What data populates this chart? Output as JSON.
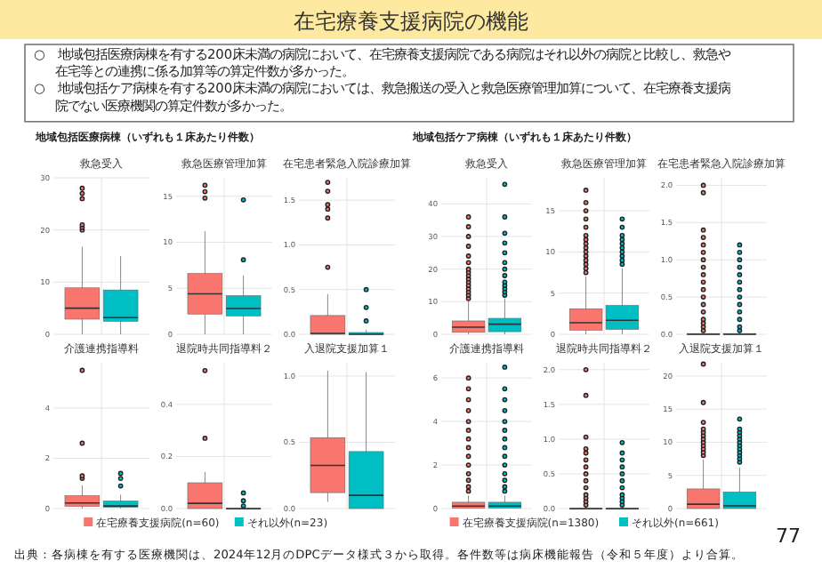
{
  "chart_data": [
    {
      "type": "other",
      "title": "在宅療養支援病院の機能",
      "annotations": [
        "○　地域包括医療病棟を有する200床未満の病院において、在宅療養支援病院である病院はそれ以外の病院と比較し、救急や在宅等との連携に係る加算等の算定件数が多かった。",
        "○　地域包括ケア病棟を有する200床未満の病院においては、救急搬送の受入と救急医療管理加算について、在宅療養支援病院でない医療機関の算定件数が多かった。",
        "地域包括医療病棟（いずれも１床あたり件数）",
        "地域包括ケア病棟（いずれも１床あたり件数）",
        "出典：各病棟を有する医療機関は、2024年12月のDPCデータ様式３から取得。各件数等は病床機能報告（令和５年度）より合算。",
        "77"
      ]
    },
    {
      "type": "box",
      "title": "救急受入",
      "categories": [
        null
      ],
      "ylim": [
        0,
        30
      ],
      "yticks": [
        0,
        10,
        20,
        30
      ],
      "grid": true,
      "series": [
        {
          "color": "#f8766d",
          "boxes": [
            {
              "low": 0,
              "q1": 2.9,
              "median": 5,
              "q3": 8.9,
              "high": 16.8,
              "outliers": [
                20,
                20.5,
                21,
                26,
                27,
                28
              ]
            }
          ]
        },
        {
          "color": "#00bfc4",
          "boxes": [
            {
              "low": 0,
              "q1": 2.5,
              "median": 3.2,
              "q3": 8.5,
              "high": 15
            }
          ]
        }
      ]
    },
    {
      "type": "box",
      "title": "救急医療管理加算",
      "categories": [
        null
      ],
      "ylim": [
        0,
        17
      ],
      "yticks": [
        0,
        5,
        10,
        15
      ],
      "grid": true,
      "series": [
        {
          "color": "#f8766d",
          "boxes": [
            {
              "low": 0,
              "q1": 2.2,
              "median": 4.4,
              "q3": 6.6,
              "high": 11.2,
              "outliers": [
                14.8,
                15.5,
                16.2
              ]
            }
          ]
        },
        {
          "color": "#00bfc4",
          "boxes": [
            {
              "low": 0,
              "q1": 2,
              "median": 2.8,
              "q3": 4.2,
              "high": 6.4,
              "outliers": [
                8.1,
                14.6
              ]
            }
          ]
        }
      ]
    },
    {
      "type": "box",
      "title": "在宅患者緊急入院診療加算",
      "categories": [
        null
      ],
      "ylim": [
        0,
        1.75
      ],
      "yticks": [
        {
          "value": 0,
          "label": "0.0"
        },
        0.5,
        {
          "value": 1,
          "label": "1.0"
        },
        1.5
      ],
      "grid": true,
      "series": [
        {
          "color": "#f8766d",
          "boxes": [
            {
              "low": 0,
              "q1": 0,
              "median": 0.01,
              "q3": 0.21,
              "high": 0.45,
              "outliers": [
                0.75,
                1.3,
                1.4,
                1.45,
                1.6,
                1.7
              ]
            }
          ]
        },
        {
          "color": "#00bfc4",
          "boxes": [
            {
              "low": 0,
              "q1": 0,
              "median": 0,
              "q3": 0.02,
              "high": 0.05,
              "outliers": [
                0.15,
                0.3,
                0.5
              ]
            }
          ]
        }
      ]
    },
    {
      "type": "box",
      "title": "介護連携指導料",
      "categories": [
        null
      ],
      "ylim": [
        0,
        5.8
      ],
      "yticks": [
        0,
        2,
        4
      ],
      "grid": true,
      "series": [
        {
          "color": "#f8766d",
          "boxes": [
            {
              "low": 0,
              "q1": 0.09,
              "median": 0.22,
              "q3": 0.51,
              "high": 0.93,
              "outliers": [
                1.2,
                1.3,
                2.6,
                5.5
              ]
            }
          ]
        },
        {
          "color": "#00bfc4",
          "boxes": [
            {
              "low": 0,
              "q1": 0.05,
              "median": 0.1,
              "q3": 0.3,
              "high": 0.55,
              "outliers": [
                0.9,
                1.2,
                1.4
              ]
            }
          ]
        }
      ]
    },
    {
      "type": "box",
      "title": "退院時共同指導料２",
      "categories": [
        null
      ],
      "ylim": [
        0,
        0.56
      ],
      "yticks": [
        {
          "value": 0,
          "label": "0.0"
        },
        0.2,
        0.4
      ],
      "grid": true,
      "series": [
        {
          "color": "#f8766d",
          "boxes": [
            {
              "low": 0,
              "q1": 0,
              "median": 0.02,
              "q3": 0.099,
              "high": 0.14,
              "outliers": [
                0.27,
                0.53
              ]
            }
          ]
        },
        {
          "color": "#00bfc4",
          "boxes": [
            {
              "low": 0,
              "q1": 0,
              "median": 0,
              "q3": 0,
              "high": 0,
              "outliers": [
                0.01,
                0.03,
                0.06
              ]
            }
          ]
        }
      ]
    },
    {
      "type": "box",
      "title": "入退院支援加算１",
      "categories": [
        null
      ],
      "ylim": [
        0,
        1.1
      ],
      "yticks": [
        {
          "value": 0,
          "label": "0.0"
        },
        0.5,
        {
          "value": 1,
          "label": "1.0"
        }
      ],
      "grid": true,
      "legend": "bottom",
      "series": [
        {
          "name": "在宅療養支援病院(n=60)",
          "color": "#f8766d",
          "boxes": [
            {
              "low": 0.05,
              "q1": 0.12,
              "median": 0.325,
              "q3": 0.535,
              "high": 1.04
            }
          ]
        },
        {
          "name": "それ以外(n=23)",
          "color": "#00bfc4",
          "boxes": [
            {
              "low": 0,
              "q1": 0,
              "median": 0.1,
              "q3": 0.43,
              "high": 1.03
            }
          ]
        }
      ]
    },
    {
      "type": "box",
      "title": "救急受入",
      "categories": [
        null
      ],
      "ylim": [
        0,
        48
      ],
      "yticks": [
        0,
        10,
        20,
        30,
        40
      ],
      "grid": true,
      "series": [
        {
          "color": "#f8766d",
          "boxes": [
            {
              "low": 0,
              "q1": 0.6,
              "median": 2.2,
              "q3": 4.1,
              "high": 10.5,
              "outliers": [
                11,
                12,
                13,
                14,
                15,
                16,
                17,
                18,
                19,
                20,
                22,
                24,
                27,
                30,
                33,
                36
              ]
            }
          ]
        },
        {
          "color": "#00bfc4",
          "boxes": [
            {
              "low": 0,
              "q1": 0.8,
              "median": 3.1,
              "q3": 4.9,
              "high": 11,
              "outliers": [
                12,
                13,
                14,
                15,
                16,
                18,
                20,
                22,
                25,
                28,
                31,
                36,
                46
              ]
            }
          ]
        }
      ]
    },
    {
      "type": "box",
      "title": "救急医療管理加算",
      "categories": [
        null
      ],
      "ylim": [
        0,
        19
      ],
      "yticks": [
        0,
        5,
        10,
        15
      ],
      "grid": true,
      "series": [
        {
          "color": "#f8766d",
          "boxes": [
            {
              "low": 0,
              "q1": 0.5,
              "median": 1.4,
              "q3": 3.1,
              "high": 7,
              "outliers": [
                7.5,
                8,
                8.5,
                9,
                9.5,
                10,
                10.5,
                11,
                11.5,
                12,
                13,
                14,
                15,
                16,
                17.5
              ]
            }
          ]
        },
        {
          "color": "#00bfc4",
          "boxes": [
            {
              "low": 0,
              "q1": 0.6,
              "median": 1.7,
              "q3": 3.5,
              "high": 8,
              "outliers": [
                8.5,
                9,
                9.5,
                10,
                10.5,
                11,
                11.5,
                12,
                13,
                14
              ]
            }
          ]
        }
      ]
    },
    {
      "type": "box",
      "title": "在宅患者緊急入院診療加算",
      "categories": [
        null
      ],
      "ylim": [
        0,
        2.1
      ],
      "yticks": [
        {
          "value": 0,
          "label": "0.0"
        },
        0.5,
        {
          "value": 1,
          "label": "1.0"
        },
        1.5,
        {
          "value": 2,
          "label": "2.0"
        }
      ],
      "grid": true,
      "series": [
        {
          "color": "#f8766d",
          "boxes": [
            {
              "low": 0,
              "q1": 0,
              "median": 0,
              "q3": 0.01,
              "high": 0.02,
              "outliers": [
                0.05,
                0.1,
                0.15,
                0.2,
                0.3,
                0.4,
                0.5,
                0.6,
                0.7,
                0.8,
                0.9,
                1,
                1.1,
                1.2,
                1.3,
                1.4,
                1.9,
                2
              ]
            }
          ]
        },
        {
          "color": "#00bfc4",
          "boxes": [
            {
              "low": 0,
              "q1": 0,
              "median": 0,
              "q3": 0.01,
              "high": 0.02,
              "outliers": [
                0.05,
                0.1,
                0.2,
                0.3,
                0.4,
                0.5,
                0.6,
                0.7,
                0.8,
                0.9,
                1,
                1.1,
                1.2
              ]
            }
          ]
        }
      ]
    },
    {
      "type": "box",
      "title": "介護連携指導料",
      "categories": [
        null
      ],
      "ylim": [
        0,
        6.7
      ],
      "yticks": [
        0,
        2,
        4,
        6
      ],
      "grid": true,
      "series": [
        {
          "color": "#f8766d",
          "boxes": [
            {
              "low": 0,
              "q1": 0.02,
              "median": 0.11,
              "q3": 0.29,
              "high": 0.6,
              "outliers": [
                0.8,
                1,
                1.3,
                1.6,
                2,
                2.4,
                2.8,
                3.2,
                3.6,
                4,
                4.5,
                5,
                5.5,
                6
              ]
            }
          ]
        },
        {
          "color": "#00bfc4",
          "boxes": [
            {
              "low": 0,
              "q1": 0.02,
              "median": 0.11,
              "q3": 0.29,
              "high": 0.6,
              "outliers": [
                0.8,
                1,
                1.3,
                1.6,
                2,
                2.4,
                2.8,
                3.2,
                3.6,
                4,
                4.5,
                5,
                5.5,
                6.5
              ]
            }
          ]
        }
      ]
    },
    {
      "type": "box",
      "title": "退院時共同指導料２",
      "categories": [
        null
      ],
      "ylim": [
        0,
        2.1
      ],
      "yticks": [
        {
          "value": 0,
          "label": "0.0"
        },
        0.5,
        {
          "value": 1,
          "label": "1.0"
        },
        1.5,
        {
          "value": 2,
          "label": "2.0"
        }
      ],
      "grid": true,
      "series": [
        {
          "color": "#f8766d",
          "boxes": [
            {
              "low": 0,
              "q1": 0,
              "median": 0,
              "q3": 0,
              "high": 0.02,
              "outliers": [
                0.05,
                0.1,
                0.15,
                0.2,
                0.3,
                0.4,
                0.5,
                0.6,
                0.7,
                0.8,
                0.86,
                1.03,
                1.63,
                2
              ]
            }
          ]
        },
        {
          "color": "#00bfc4",
          "boxes": [
            {
              "low": 0,
              "q1": 0,
              "median": 0,
              "q3": 0,
              "high": 0.02,
              "outliers": [
                0.05,
                0.1,
                0.15,
                0.2,
                0.3,
                0.4,
                0.5,
                0.6,
                0.7,
                0.8,
                0.95
              ]
            }
          ]
        }
      ]
    },
    {
      "type": "box",
      "title": "入退院支援加算１",
      "categories": [
        null
      ],
      "ylim": [
        0,
        22
      ],
      "yticks": [
        0,
        5,
        10,
        15,
        20
      ],
      "grid": true,
      "legend": "bottom",
      "series": [
        {
          "name": "在宅療養支援病院(n=1380)",
          "color": "#f8766d",
          "boxes": [
            {
              "low": 0,
              "q1": 0,
              "median": 0.65,
              "q3": 2.96,
              "high": 7.4,
              "outliers": [
                8,
                8.5,
                9,
                9.5,
                10,
                10.5,
                11,
                11.5,
                12,
                13,
                16,
                21.8
              ]
            }
          ]
        },
        {
          "name": "それ以外(n=661)",
          "color": "#00bfc4",
          "boxes": [
            {
              "low": 0,
              "q1": 0,
              "median": 0.4,
              "q3": 2.5,
              "high": 6.2,
              "outliers": [
                7,
                7.5,
                8,
                8.5,
                9,
                9.5,
                10,
                10.5,
                11,
                11.5,
                12,
                13.5
              ]
            }
          ]
        }
      ]
    }
  ]
}
